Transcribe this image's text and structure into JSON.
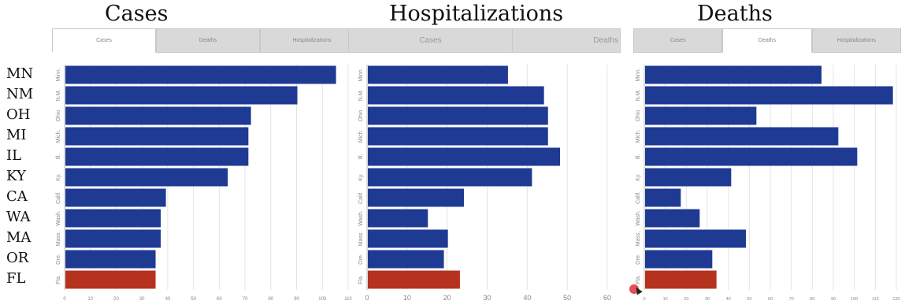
{
  "headers": {
    "cases": "Cases",
    "hospitalizations": "Hospitalizations",
    "deaths": "Deaths"
  },
  "state_labels": [
    "MN",
    "NM",
    "OH",
    "MI",
    "IL",
    "KY",
    "CA",
    "WA",
    "MA",
    "OR",
    "FL"
  ],
  "tabs": {
    "panel1": [
      "Cases",
      "Deaths",
      "Hospitalizations"
    ],
    "panel2": [
      "Cases",
      "Deaths"
    ],
    "panel3": [
      "Cases",
      "Deaths",
      "Hospitalizations"
    ]
  },
  "colors": {
    "bar": "#1f3a93",
    "highlight": "#b5321f",
    "grid": "#e4e4e4",
    "tick": "#888888"
  },
  "chart_data": [
    {
      "type": "bar",
      "orientation": "horizontal",
      "categories": [
        "Minn.",
        "N.M.",
        "Ohio",
        "Mich.",
        "Ill.",
        "Ky.",
        "Calif.",
        "Wash.",
        "Mass.",
        "Ore.",
        "Fla."
      ],
      "values": [
        105,
        90,
        72,
        71,
        71,
        63,
        39,
        37,
        37,
        35,
        35
      ],
      "highlight": [
        "Fla."
      ],
      "xlim": [
        0,
        110
      ],
      "xticks": [
        0,
        10,
        20,
        30,
        40,
        50,
        60,
        70,
        80,
        90,
        100,
        110
      ],
      "grid": true
    },
    {
      "type": "bar",
      "orientation": "horizontal",
      "categories": [
        "Minn.",
        "N.M.",
        "Ohio",
        "Mich.",
        "Ill.",
        "Ky.",
        "Calif.",
        "Wash.",
        "Mass.",
        "Ore.",
        "Fla."
      ],
      "values": [
        35,
        44,
        45,
        45,
        48,
        41,
        24,
        15,
        20,
        19,
        23
      ],
      "highlight": [
        "Fla."
      ],
      "xlim": [
        0,
        60
      ],
      "xticks": [
        0,
        10,
        20,
        30,
        40,
        50,
        60
      ],
      "grid": true
    },
    {
      "type": "bar",
      "orientation": "horizontal",
      "categories": [
        "Minn.",
        "N.M.",
        "Ohio",
        "Mich.",
        "Ill.",
        "Ky.",
        "Calif.",
        "Wash.",
        "Mass.",
        "Ore.",
        "Fla."
      ],
      "values": [
        84,
        118,
        53,
        92,
        101,
        41,
        17,
        26,
        48,
        32,
        34
      ],
      "highlight": [
        "Fla."
      ],
      "xlim": [
        0,
        120
      ],
      "xticks": [
        0,
        10,
        20,
        30,
        40,
        50,
        60,
        70,
        80,
        90,
        100,
        110,
        120
      ],
      "grid": true
    }
  ]
}
